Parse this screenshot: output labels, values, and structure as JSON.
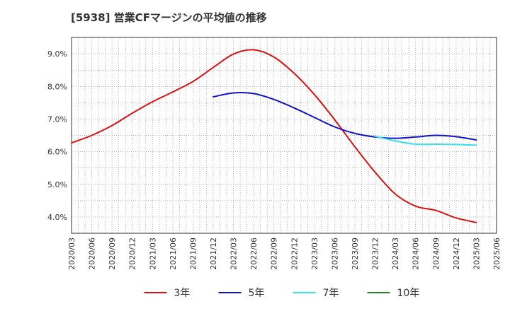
{
  "chart_data": {
    "type": "line",
    "title": "[5938]  営業CFマージンの平均値の推移",
    "xlabel": "",
    "ylabel": "",
    "ylim": [
      3.5,
      9.5
    ],
    "yticks": [
      4.0,
      5.0,
      6.0,
      7.0,
      8.0,
      9.0
    ],
    "ytick_labels": [
      "4.0%",
      "5.0%",
      "6.0%",
      "7.0%",
      "8.0%",
      "9.0%"
    ],
    "x_categories": [
      "2020/03",
      "2020/06",
      "2020/09",
      "2020/12",
      "2021/03",
      "2021/06",
      "2021/09",
      "2021/12",
      "2022/03",
      "2022/06",
      "2022/09",
      "2022/12",
      "2023/03",
      "2023/06",
      "2023/09",
      "2023/12",
      "2024/03",
      "2024/06",
      "2024/09",
      "2024/12",
      "2025/03",
      "2025/06"
    ],
    "grid": true,
    "legend_position": "bottom",
    "series": [
      {
        "name": "3年",
        "color": "#dd1111",
        "x": [
          "2020/03",
          "2020/06",
          "2020/09",
          "2020/12",
          "2021/03",
          "2021/06",
          "2021/09",
          "2021/12",
          "2022/03",
          "2022/06",
          "2022/09",
          "2022/12",
          "2023/03",
          "2023/06",
          "2023/09",
          "2023/12",
          "2024/03",
          "2024/06",
          "2024/09",
          "2024/12",
          "2025/03"
        ],
        "values": [
          6.27,
          6.5,
          6.8,
          7.18,
          7.53,
          7.83,
          8.15,
          8.58,
          8.99,
          9.12,
          8.9,
          8.4,
          7.75,
          6.98,
          6.15,
          5.37,
          4.7,
          4.33,
          4.2,
          3.97,
          3.83
        ]
      },
      {
        "name": "5年",
        "color": "#1111cc",
        "x": [
          "2021/12",
          "2022/03",
          "2022/06",
          "2022/09",
          "2022/12",
          "2023/03",
          "2023/06",
          "2023/09",
          "2023/12",
          "2024/03",
          "2024/06",
          "2024/09",
          "2024/12",
          "2025/03"
        ],
        "values": [
          7.68,
          7.8,
          7.78,
          7.6,
          7.34,
          7.05,
          6.76,
          6.56,
          6.45,
          6.41,
          6.45,
          6.5,
          6.46,
          6.36
        ]
      },
      {
        "name": "7年",
        "color": "#33e0ee",
        "x": [
          "2023/12",
          "2024/03",
          "2024/06",
          "2024/09",
          "2024/12",
          "2025/03"
        ],
        "values": [
          6.47,
          6.33,
          6.23,
          6.23,
          6.22,
          6.2
        ]
      },
      {
        "name": "10年",
        "color": "#228822",
        "x": [],
        "values": []
      }
    ]
  }
}
